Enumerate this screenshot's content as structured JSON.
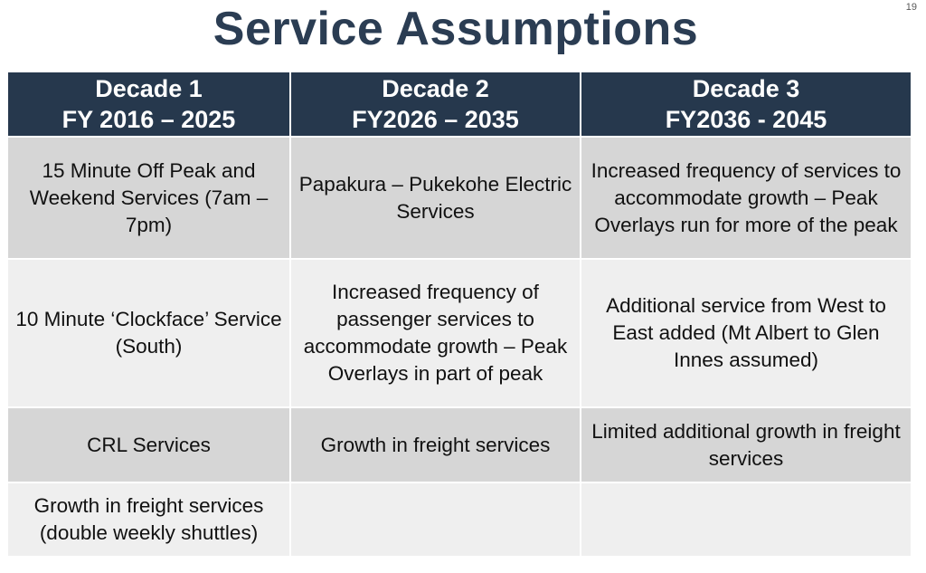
{
  "title": "Service Assumptions",
  "page_number": "19",
  "headers": [
    {
      "line1": "Decade 1",
      "line2": "FY 2016 – 2025"
    },
    {
      "line1": "Decade 2",
      "line2": "FY2026 – 2035"
    },
    {
      "line1": "Decade 3",
      "line2": "FY2036 - 2045"
    }
  ],
  "rows": [
    [
      "15 Minute Off Peak and Weekend Services (7am – 7pm)",
      "Papakura – Pukekohe Electric Services",
      "Increased frequency of services to accommodate growth – Peak Overlays run for more of the peak"
    ],
    [
      "10 Minute ‘Clockface’ Service (South)",
      "Increased frequency of passenger services to accommodate growth – Peak Overlays in part of peak",
      "Additional service from West to East added (Mt Albert to Glen Innes assumed)"
    ],
    [
      "CRL Services",
      "Growth in freight services",
      "Limited additional growth in freight services"
    ],
    [
      "Growth in freight services (double weekly shuttles)",
      "",
      ""
    ]
  ]
}
